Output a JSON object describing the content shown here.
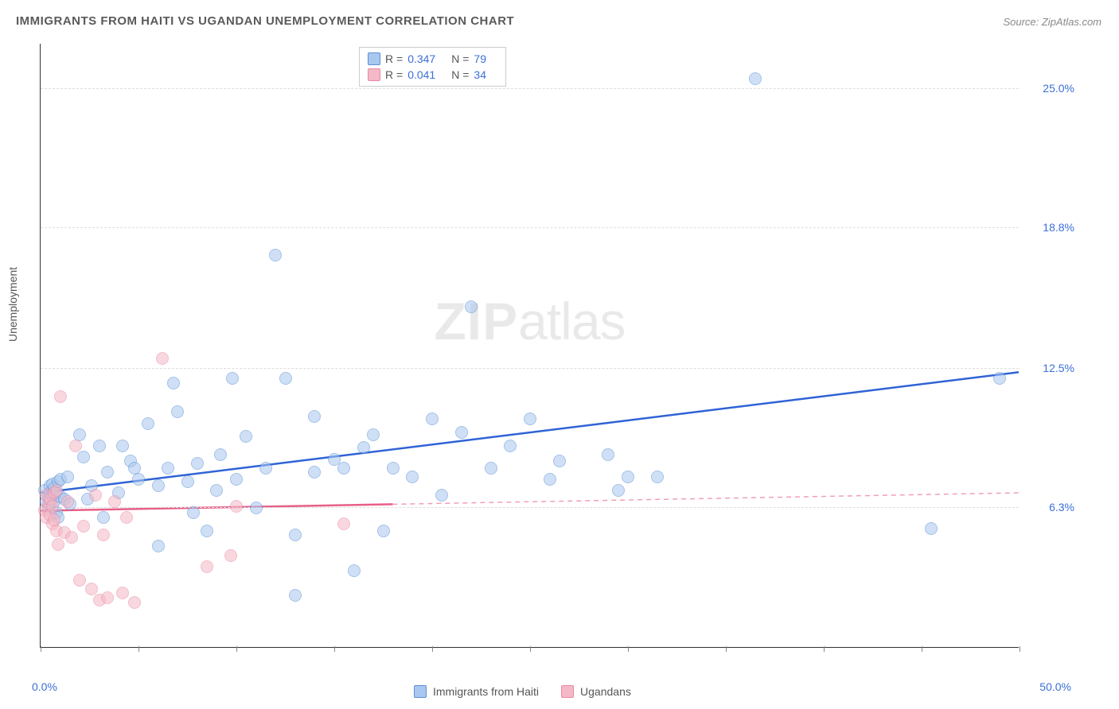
{
  "title": "IMMIGRANTS FROM HAITI VS UGANDAN UNEMPLOYMENT CORRELATION CHART",
  "source": "Source: ZipAtlas.com",
  "watermark_zip": "ZIP",
  "watermark_atlas": "atlas",
  "chart": {
    "type": "scatter",
    "y_axis_title": "Unemployment",
    "background_color": "#ffffff",
    "grid_color": "#dddddd",
    "axis_color": "#333333",
    "xlim": [
      0,
      50
    ],
    "ylim": [
      0,
      27
    ],
    "x_label_min": "0.0%",
    "x_label_max": "50.0%",
    "x_ticks": [
      0,
      5,
      10,
      15,
      20,
      25,
      30,
      35,
      40,
      45,
      50
    ],
    "y_ticks": [
      {
        "value": 6.3,
        "label": "6.3%"
      },
      {
        "value": 12.5,
        "label": "12.5%"
      },
      {
        "value": 18.8,
        "label": "18.8%"
      },
      {
        "value": 25.0,
        "label": "25.0%"
      }
    ],
    "point_radius": 8,
    "point_opacity": 0.55,
    "point_stroke_width": 1,
    "trend_line_width": 2.5,
    "series": [
      {
        "id": "haiti",
        "label": "Immigrants from Haiti",
        "color_fill": "#a9c8ef",
        "color_stroke": "#5b8fd6",
        "line_color": "#2f63d6",
        "R": "0.347",
        "N": "79",
        "trend": {
          "x1": 0,
          "y1": 6.9,
          "x2": 50,
          "y2": 12.3,
          "solid_until_x": 50
        },
        "points": [
          [
            0.2,
            7.0
          ],
          [
            0.3,
            6.5
          ],
          [
            0.4,
            6.7
          ],
          [
            0.4,
            6.2
          ],
          [
            0.5,
            6.9
          ],
          [
            0.5,
            7.2
          ],
          [
            0.5,
            6.4
          ],
          [
            0.6,
            6.8
          ],
          [
            0.6,
            7.3
          ],
          [
            0.7,
            6.5
          ],
          [
            0.7,
            7.1
          ],
          [
            0.8,
            6.0
          ],
          [
            0.8,
            6.9
          ],
          [
            0.9,
            7.4
          ],
          [
            0.9,
            5.8
          ],
          [
            1.0,
            6.7
          ],
          [
            1.0,
            7.5
          ],
          [
            1.2,
            6.6
          ],
          [
            1.4,
            7.6
          ],
          [
            1.5,
            6.4
          ],
          [
            2.0,
            9.5
          ],
          [
            2.2,
            8.5
          ],
          [
            2.4,
            6.6
          ],
          [
            2.6,
            7.2
          ],
          [
            3.0,
            9.0
          ],
          [
            3.2,
            5.8
          ],
          [
            3.4,
            7.8
          ],
          [
            4.0,
            6.9
          ],
          [
            4.2,
            9.0
          ],
          [
            4.6,
            8.3
          ],
          [
            5.0,
            7.5
          ],
          [
            5.5,
            10.0
          ],
          [
            6.0,
            4.5
          ],
          [
            6.0,
            7.2
          ],
          [
            6.5,
            8.0
          ],
          [
            7.0,
            10.5
          ],
          [
            7.5,
            7.4
          ],
          [
            7.8,
            6.0
          ],
          [
            8.0,
            8.2
          ],
          [
            8.5,
            5.2
          ],
          [
            9.0,
            7.0
          ],
          [
            9.2,
            8.6
          ],
          [
            9.8,
            12.0
          ],
          [
            10.0,
            7.5
          ],
          [
            10.5,
            9.4
          ],
          [
            11.0,
            6.2
          ],
          [
            11.5,
            8.0
          ],
          [
            12.0,
            17.5
          ],
          [
            12.5,
            12.0
          ],
          [
            13.0,
            5.0
          ],
          [
            13.0,
            2.3
          ],
          [
            14.0,
            7.8
          ],
          [
            14.0,
            10.3
          ],
          [
            15.0,
            8.4
          ],
          [
            15.5,
            8.0
          ],
          [
            16.0,
            3.4
          ],
          [
            16.5,
            8.9
          ],
          [
            17.0,
            9.5
          ],
          [
            17.5,
            5.2
          ],
          [
            18.0,
            8.0
          ],
          [
            19.0,
            7.6
          ],
          [
            20.0,
            10.2
          ],
          [
            20.5,
            6.8
          ],
          [
            21.5,
            9.6
          ],
          [
            22.0,
            15.2
          ],
          [
            23.0,
            8.0
          ],
          [
            24.0,
            9.0
          ],
          [
            25.0,
            10.2
          ],
          [
            26.0,
            7.5
          ],
          [
            26.5,
            8.3
          ],
          [
            29.0,
            8.6
          ],
          [
            29.5,
            7.0
          ],
          [
            30.0,
            7.6
          ],
          [
            31.5,
            7.6
          ],
          [
            36.5,
            25.4
          ],
          [
            45.5,
            5.3
          ],
          [
            49.0,
            12.0
          ],
          [
            6.8,
            11.8
          ],
          [
            4.8,
            8.0
          ]
        ]
      },
      {
        "id": "ugandans",
        "label": "Ugandans",
        "color_fill": "#f5b8c6",
        "color_stroke": "#e88aa3",
        "line_color": "#e75f87",
        "R": "0.041",
        "N": "34",
        "trend": {
          "x1": 0,
          "y1": 6.1,
          "x2": 50,
          "y2": 6.9,
          "solid_until_x": 18
        },
        "points": [
          [
            0.2,
            6.1
          ],
          [
            0.3,
            5.8
          ],
          [
            0.3,
            6.8
          ],
          [
            0.4,
            6.4
          ],
          [
            0.5,
            5.9
          ],
          [
            0.5,
            6.6
          ],
          [
            0.6,
            5.5
          ],
          [
            0.6,
            6.3
          ],
          [
            0.7,
            6.9
          ],
          [
            0.7,
            5.7
          ],
          [
            0.8,
            7.0
          ],
          [
            0.8,
            5.2
          ],
          [
            0.9,
            4.6
          ],
          [
            1.0,
            11.2
          ],
          [
            1.2,
            5.1
          ],
          [
            1.4,
            6.5
          ],
          [
            1.6,
            4.9
          ],
          [
            1.8,
            9.0
          ],
          [
            2.0,
            3.0
          ],
          [
            2.2,
            5.4
          ],
          [
            2.6,
            2.6
          ],
          [
            2.8,
            6.8
          ],
          [
            3.0,
            2.1
          ],
          [
            3.2,
            5.0
          ],
          [
            3.4,
            2.2
          ],
          [
            3.8,
            6.5
          ],
          [
            4.2,
            2.4
          ],
          [
            4.4,
            5.8
          ],
          [
            4.8,
            2.0
          ],
          [
            6.2,
            12.9
          ],
          [
            8.5,
            3.6
          ],
          [
            9.7,
            4.1
          ],
          [
            10.0,
            6.3
          ],
          [
            15.5,
            5.5
          ]
        ]
      }
    ]
  }
}
